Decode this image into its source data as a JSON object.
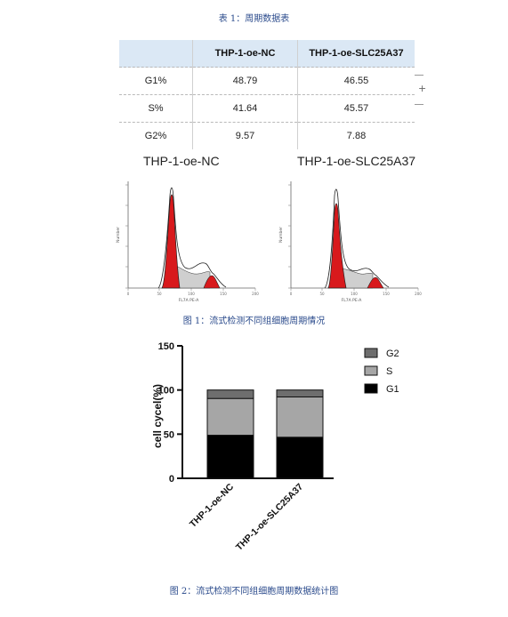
{
  "table": {
    "caption": "表 1：周期数据表",
    "headers": [
      "",
      "THP-1-oe-NC",
      "THP-1-oe-SLC25A37"
    ],
    "rows": [
      {
        "label": "G1%",
        "nc": "48.79",
        "slc": "46.55"
      },
      {
        "label": "S%",
        "nc": "41.64",
        "slc": "45.57"
      },
      {
        "label": "G2%",
        "nc": "9.57",
        "slc": "7.88"
      }
    ]
  },
  "figure1": {
    "caption": "图 1：流式检测不同组细胞周期情况",
    "panels": [
      {
        "title": "THP-1-oe-NC",
        "xlabel": "FL7A PE-A",
        "ylabel": "Number"
      },
      {
        "title": "THP-1-oe-SLC25A37",
        "xlabel": "FL7A PE-A",
        "ylabel": "Number"
      }
    ],
    "colors": {
      "peak_fill": "#d8191c",
      "s_fill": "#cfcfcf"
    }
  },
  "figure2": {
    "caption": "图 2：流式检测不同组细胞周期数据统计图"
  },
  "chart_data": {
    "type": "bar",
    "stacked": true,
    "categories": [
      "THP-1-oe-NC",
      "THP-1-oe-SLC25A37"
    ],
    "series": [
      {
        "name": "G1",
        "values": [
          48.79,
          46.55
        ],
        "color": "#000000"
      },
      {
        "name": "S",
        "values": [
          41.64,
          45.57
        ],
        "color": "#a6a6a6"
      },
      {
        "name": "G2",
        "values": [
          9.57,
          7.88
        ],
        "color": "#6e6e6e"
      }
    ],
    "ylabel": "cell cycel(%)",
    "xlabel": "",
    "ylim": [
      0,
      150
    ],
    "yticks": [
      0,
      50,
      100,
      150
    ],
    "legend": "right",
    "legend_order": [
      "G2",
      "S",
      "G1"
    ],
    "grid": false
  }
}
